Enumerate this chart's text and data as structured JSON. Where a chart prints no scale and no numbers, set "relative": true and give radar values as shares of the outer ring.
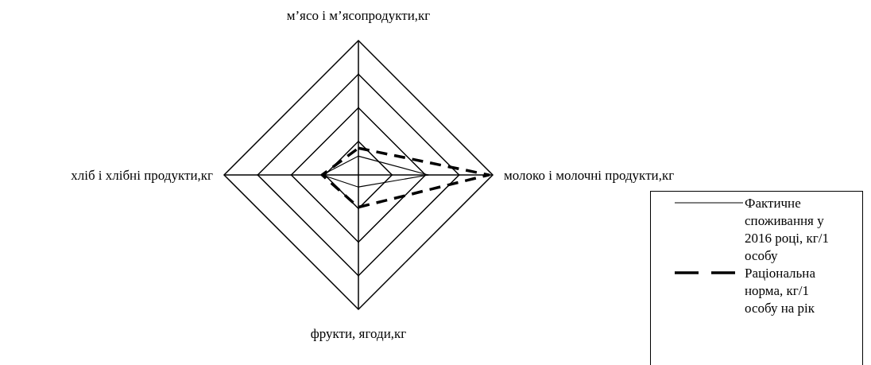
{
  "chart_data": {
    "type": "radar",
    "relative": true,
    "grid": true,
    "legend": "bottom right",
    "categories": [
      "м’ясо і м’ясопродукти,кг",
      "молоко і молочні продукти,кг",
      "фрукти, ягоди,кг",
      "хліб і хлібні продукти,кг"
    ],
    "series": [
      {
        "name": "Фактичне споживання у 2016 році, кг/1 особу",
        "color": "#000000",
        "line_style": "solid",
        "values": [
          0.14,
          0.52,
          0.09,
          0.27
        ]
      },
      {
        "name": "Раціональна норма, кг/1 особу на рік",
        "color": "#000000",
        "line_style": "dashed",
        "values": [
          0.2,
          0.97,
          0.24,
          0.27
        ]
      }
    ]
  }
}
